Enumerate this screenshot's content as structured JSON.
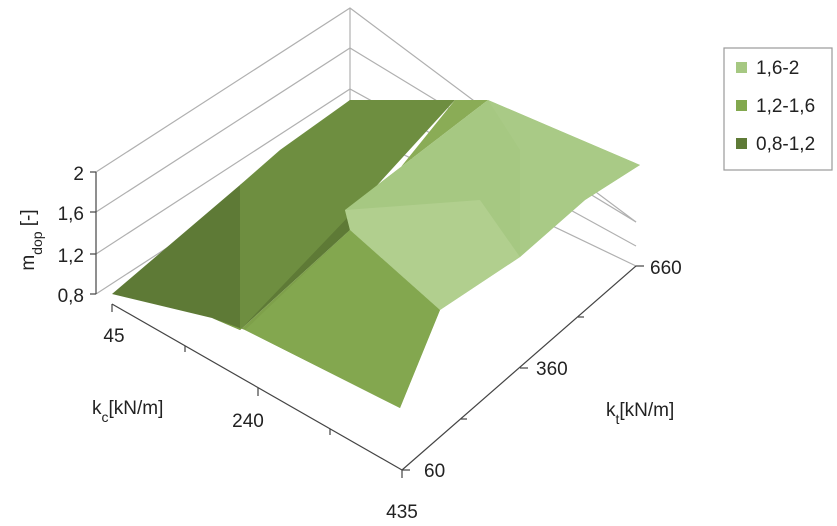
{
  "chart_data": {
    "type": "surface",
    "title": "",
    "zlabel": {
      "main": "m",
      "sub": "dop",
      "unit": " [-]"
    },
    "xlabel": {
      "main": "k",
      "sub": "c",
      "unit": "[kN/m]"
    },
    "ylabel": {
      "main": "k",
      "sub": "t",
      "unit": "[kN/m]"
    },
    "z_ticks": [
      "0,8",
      "1,2",
      "1,6",
      "2"
    ],
    "x_ticks": [
      "45",
      "240",
      "435"
    ],
    "y_ticks": [
      "60",
      "360",
      "660"
    ],
    "zlim": [
      0.8,
      2
    ],
    "grid": true,
    "legend": {
      "position": "right",
      "entries": [
        {
          "label": "1,6-2",
          "color": "#a6c882"
        },
        {
          "label": "1,2-1,6",
          "color": "#82a84e"
        },
        {
          "label": "0,8-1,2",
          "color": "#5e7a36"
        }
      ]
    }
  }
}
